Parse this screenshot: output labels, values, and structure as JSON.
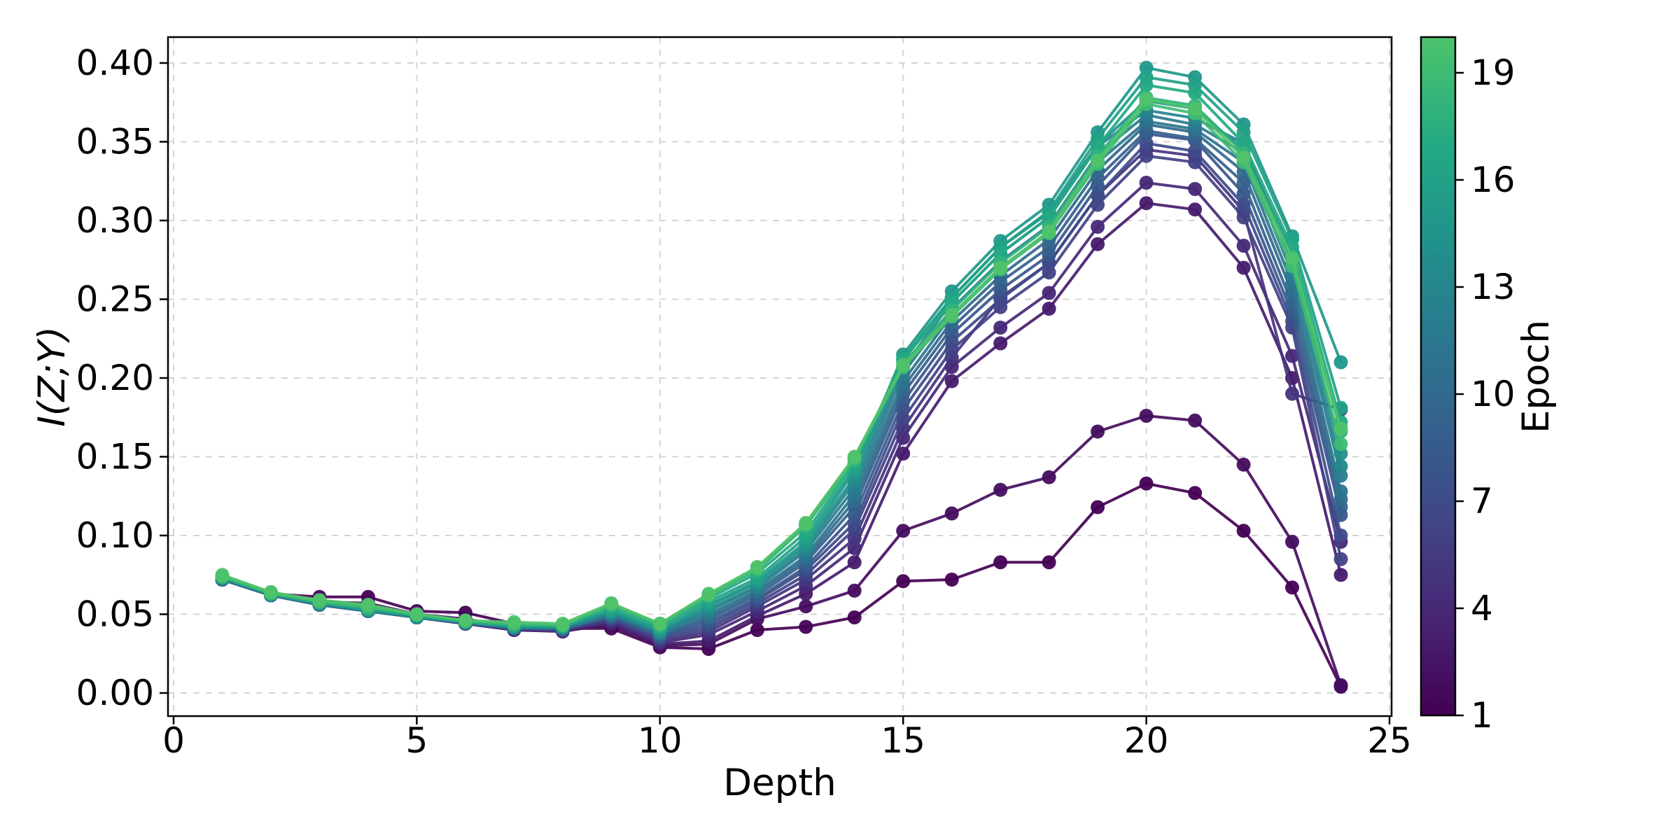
{
  "figure": {
    "background": "#ffffff",
    "spine_color": "#000000",
    "grid_color": "#d4d4d4"
  },
  "chart_data": {
    "type": "line",
    "title": "",
    "xlabel": "Depth",
    "ylabel": "I(Z;Y)",
    "xlim": [
      -0.12,
      25.05
    ],
    "ylim": [
      -0.0147,
      0.4164
    ],
    "grid": true,
    "legend_position": "colorbar-right",
    "xticks": [
      0,
      5,
      10,
      15,
      20,
      25
    ],
    "xtick_labels": [
      "0",
      "5",
      "10",
      "15",
      "20",
      "25"
    ],
    "yticks": [
      0.0,
      0.05,
      0.1,
      0.15,
      0.2,
      0.25,
      0.3,
      0.35,
      0.4
    ],
    "ytick_labels": [
      "0.00",
      "0.05",
      "0.10",
      "0.15",
      "0.20",
      "0.25",
      "0.30",
      "0.35",
      "0.40"
    ],
    "x": [
      1,
      2,
      3,
      4,
      5,
      6,
      7,
      8,
      9,
      10,
      11,
      12,
      13,
      14,
      15,
      16,
      17,
      18,
      19,
      20,
      21,
      22,
      23,
      24
    ],
    "series": [
      {
        "name": "Epoch 1",
        "epoch": 1,
        "color": "#440154",
        "values": [
          0.073,
          0.063,
          0.061,
          0.061,
          0.052,
          0.051,
          0.044,
          0.041,
          0.041,
          0.029,
          0.028,
          0.04,
          0.042,
          0.048,
          0.071,
          0.072,
          0.083,
          0.083,
          0.118,
          0.133,
          0.127,
          0.103,
          0.067,
          0.004
        ]
      },
      {
        "name": "Epoch 2",
        "epoch": 2,
        "color": "#450e60",
        "values": [
          0.072,
          0.062,
          0.058,
          0.057,
          0.05,
          0.047,
          0.042,
          0.04,
          0.043,
          0.03,
          0.031,
          0.047,
          0.055,
          0.065,
          0.103,
          0.114,
          0.129,
          0.137,
          0.166,
          0.176,
          0.173,
          0.145,
          0.096,
          0.005
        ]
      },
      {
        "name": "Epoch 3",
        "epoch": 3,
        "color": "#471b6d",
        "values": [
          0.072,
          0.062,
          0.056,
          0.052,
          0.048,
          0.044,
          0.04,
          0.039,
          0.044,
          0.031,
          0.033,
          0.049,
          0.063,
          0.083,
          0.152,
          0.198,
          0.222,
          0.244,
          0.285,
          0.311,
          0.307,
          0.27,
          0.2,
          0.075
        ]
      },
      {
        "name": "Epoch 4",
        "epoch": 4,
        "color": "#472877",
        "values": [
          0.072,
          0.062,
          0.056,
          0.052,
          0.048,
          0.044,
          0.04,
          0.04,
          0.045,
          0.032,
          0.037,
          0.052,
          0.068,
          0.092,
          0.162,
          0.207,
          0.232,
          0.254,
          0.296,
          0.324,
          0.32,
          0.284,
          0.214,
          0.096
        ]
      },
      {
        "name": "Epoch 5",
        "epoch": 5,
        "color": "#44347e",
        "values": [
          0.072,
          0.062,
          0.056,
          0.052,
          0.048,
          0.044,
          0.041,
          0.04,
          0.046,
          0.033,
          0.039,
          0.055,
          0.072,
          0.098,
          0.168,
          0.213,
          0.251,
          0.273,
          0.316,
          0.345,
          0.341,
          0.306,
          0.19,
          0.18
        ]
      },
      {
        "name": "Epoch 6",
        "epoch": 6,
        "color": "#424185",
        "values": [
          0.072,
          0.062,
          0.056,
          0.052,
          0.048,
          0.044,
          0.041,
          0.04,
          0.047,
          0.034,
          0.041,
          0.057,
          0.075,
          0.104,
          0.174,
          0.218,
          0.245,
          0.267,
          0.31,
          0.341,
          0.337,
          0.302,
          0.232,
          0.085
        ]
      },
      {
        "name": "Epoch 7",
        "epoch": 7,
        "color": "#3e4b89",
        "values": [
          0.072,
          0.062,
          0.056,
          0.052,
          0.048,
          0.044,
          0.041,
          0.04,
          0.048,
          0.035,
          0.043,
          0.059,
          0.078,
          0.108,
          0.18,
          0.223,
          0.25,
          0.273,
          0.316,
          0.349,
          0.344,
          0.31,
          0.236,
          0.1
        ]
      },
      {
        "name": "Epoch 8",
        "epoch": 8,
        "color": "#39568b",
        "values": [
          0.072,
          0.062,
          0.056,
          0.052,
          0.048,
          0.044,
          0.041,
          0.041,
          0.048,
          0.036,
          0.045,
          0.06,
          0.08,
          0.113,
          0.185,
          0.228,
          0.256,
          0.278,
          0.322,
          0.355,
          0.351,
          0.317,
          0.241,
          0.113
        ]
      },
      {
        "name": "Epoch 9",
        "epoch": 9,
        "color": "#35608d",
        "values": [
          0.072,
          0.062,
          0.056,
          0.052,
          0.048,
          0.045,
          0.041,
          0.041,
          0.049,
          0.036,
          0.047,
          0.062,
          0.083,
          0.118,
          0.19,
          0.232,
          0.261,
          0.283,
          0.327,
          0.357,
          0.352,
          0.324,
          0.247,
          0.118
        ]
      },
      {
        "name": "Epoch 10",
        "epoch": 10,
        "color": "#31698d",
        "values": [
          0.072,
          0.062,
          0.056,
          0.052,
          0.048,
          0.045,
          0.041,
          0.041,
          0.049,
          0.037,
          0.048,
          0.064,
          0.085,
          0.122,
          0.194,
          0.236,
          0.265,
          0.288,
          0.332,
          0.361,
          0.356,
          0.331,
          0.254,
          0.123
        ]
      },
      {
        "name": "Epoch 11",
        "epoch": 11,
        "color": "#2c738e",
        "values": [
          0.073,
          0.062,
          0.056,
          0.052,
          0.048,
          0.045,
          0.042,
          0.041,
          0.05,
          0.038,
          0.05,
          0.065,
          0.087,
          0.126,
          0.198,
          0.24,
          0.27,
          0.293,
          0.337,
          0.363,
          0.358,
          0.337,
          0.26,
          0.128
        ]
      },
      {
        "name": "Epoch 12",
        "epoch": 12,
        "color": "#297c8e",
        "values": [
          0.073,
          0.062,
          0.057,
          0.052,
          0.048,
          0.045,
          0.042,
          0.041,
          0.05,
          0.038,
          0.052,
          0.067,
          0.09,
          0.13,
          0.203,
          0.244,
          0.274,
          0.297,
          0.342,
          0.367,
          0.361,
          0.343,
          0.266,
          0.138
        ]
      },
      {
        "name": "Epoch 13",
        "epoch": 13,
        "color": "#25868d",
        "values": [
          0.073,
          0.063,
          0.057,
          0.053,
          0.049,
          0.045,
          0.042,
          0.042,
          0.051,
          0.039,
          0.053,
          0.068,
          0.092,
          0.134,
          0.207,
          0.248,
          0.279,
          0.302,
          0.347,
          0.37,
          0.365,
          0.349,
          0.273,
          0.144
        ]
      },
      {
        "name": "Epoch 14",
        "epoch": 14,
        "color": "#228f8c",
        "values": [
          0.073,
          0.063,
          0.057,
          0.053,
          0.049,
          0.045,
          0.042,
          0.042,
          0.052,
          0.039,
          0.055,
          0.07,
          0.094,
          0.137,
          0.211,
          0.251,
          0.283,
          0.305,
          0.348,
          0.376,
          0.371,
          0.345,
          0.279,
          0.152
        ]
      },
      {
        "name": "Epoch 15",
        "epoch": 15,
        "color": "#21988a",
        "values": [
          0.073,
          0.063,
          0.057,
          0.053,
          0.049,
          0.045,
          0.042,
          0.042,
          0.052,
          0.04,
          0.056,
          0.071,
          0.096,
          0.141,
          0.215,
          0.255,
          0.287,
          0.31,
          0.356,
          0.397,
          0.391,
          0.361,
          0.29,
          0.21
        ]
      },
      {
        "name": "Epoch 16",
        "epoch": 16,
        "color": "#22a187",
        "values": [
          0.073,
          0.063,
          0.057,
          0.053,
          0.049,
          0.045,
          0.043,
          0.042,
          0.053,
          0.041,
          0.058,
          0.073,
          0.099,
          0.143,
          0.213,
          0.251,
          0.283,
          0.306,
          0.352,
          0.391,
          0.386,
          0.356,
          0.288,
          0.181
        ]
      },
      {
        "name": "Epoch 17",
        "epoch": 17,
        "color": "#24a983",
        "values": [
          0.074,
          0.063,
          0.058,
          0.054,
          0.049,
          0.045,
          0.043,
          0.043,
          0.055,
          0.042,
          0.06,
          0.076,
          0.102,
          0.146,
          0.212,
          0.248,
          0.279,
          0.302,
          0.347,
          0.386,
          0.381,
          0.349,
          0.283,
          0.172
        ]
      },
      {
        "name": "Epoch 18",
        "epoch": 18,
        "color": "#31b27b",
        "values": [
          0.074,
          0.063,
          0.058,
          0.054,
          0.05,
          0.046,
          0.044,
          0.043,
          0.056,
          0.043,
          0.062,
          0.078,
          0.106,
          0.148,
          0.209,
          0.243,
          0.273,
          0.296,
          0.341,
          0.378,
          0.373,
          0.343,
          0.277,
          0.166
        ]
      },
      {
        "name": "Epoch 19",
        "epoch": 19,
        "color": "#3ebb74",
        "values": [
          0.074,
          0.064,
          0.058,
          0.055,
          0.05,
          0.046,
          0.044,
          0.043,
          0.056,
          0.044,
          0.062,
          0.079,
          0.107,
          0.149,
          0.207,
          0.239,
          0.269,
          0.292,
          0.336,
          0.374,
          0.368,
          0.337,
          0.271,
          0.158
        ]
      },
      {
        "name": "Epoch 20",
        "epoch": 20,
        "color": "#4fc26a",
        "values": [
          0.075,
          0.064,
          0.059,
          0.056,
          0.05,
          0.046,
          0.045,
          0.044,
          0.057,
          0.044,
          0.063,
          0.08,
          0.108,
          0.15,
          0.208,
          0.24,
          0.27,
          0.293,
          0.338,
          0.377,
          0.371,
          0.34,
          0.276,
          0.168
        ]
      }
    ],
    "colorbar": {
      "label": "Epoch",
      "vmin": 1,
      "vmax": 20,
      "ticks": [
        1,
        4,
        7,
        10,
        13,
        16,
        19
      ],
      "tick_labels": [
        "1",
        "4",
        "7",
        "10",
        "13",
        "16",
        "19"
      ],
      "bottom_color": "#440154",
      "top_color": "#4fc26a",
      "gradient_stops": [
        {
          "offset": 0.0,
          "color": "#440154"
        },
        {
          "offset": 0.139,
          "color": "#482475"
        },
        {
          "offset": 0.278,
          "color": "#414487"
        },
        {
          "offset": 0.417,
          "color": "#355f8d"
        },
        {
          "offset": 0.556,
          "color": "#2a788e"
        },
        {
          "offset": 0.694,
          "color": "#21918c"
        },
        {
          "offset": 0.833,
          "color": "#22a884"
        },
        {
          "offset": 0.972,
          "color": "#44bf70"
        },
        {
          "offset": 1.0,
          "color": "#4fc26a"
        }
      ]
    }
  }
}
